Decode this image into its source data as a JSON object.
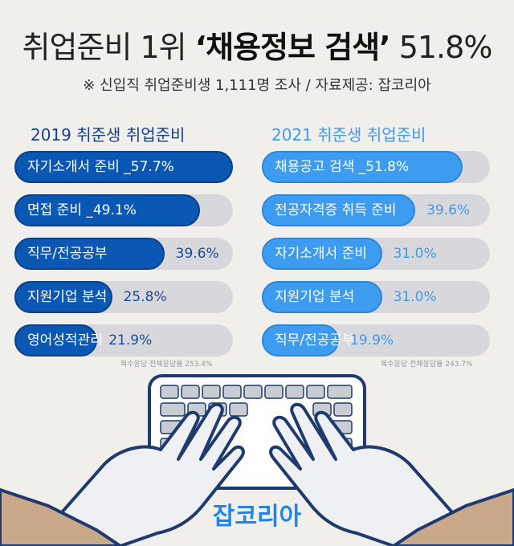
{
  "title_prefix": "취업준비 1위",
  "title_highlight": "‘채용정보 검색’",
  "title_suffix": "51.8%",
  "subtitle": "※ 신입직 취업준비생 1,111명 조사 / 자료제공: 잡코리아",
  "colors": {
    "left_fill": "#0a57b4",
    "left_value": "#1a4d9b",
    "right_fill": "#3d9bf0",
    "right_value": "#3d9bf0",
    "left_title": "#15408c",
    "right_title": "#3d9bf0",
    "track": "#d8d8dc",
    "logo": "#1f86e6"
  },
  "chart_data": [
    {
      "type": "bar",
      "title": "2019 취준생 취업준비",
      "categories": [
        "자기소개서  준비",
        "면접 준비",
        "직무/전공공부",
        "지원기업 분석",
        "영어성적관리"
      ],
      "labels": [
        "자기소개서  준비 _57.7%",
        "면접 준비 _49.1%",
        "직무/전공공부",
        "지원기업 분석",
        "영어성적관리"
      ],
      "values": [
        57.7,
        49.1,
        39.6,
        25.8,
        21.9
      ],
      "value_labels": [
        "",
        "",
        "39.6%",
        "25.8%",
        "21.9%"
      ],
      "note": "복수응답 전체응답률 253.4%"
    },
    {
      "type": "bar",
      "title": "2021 취준생 취업준비",
      "categories": [
        "채용공고 검색",
        "전공자격증 취득 준비",
        "자기소개서 준비",
        "지원기업 분석",
        "직무/전공공부"
      ],
      "labels": [
        "채용공고 검색 _51.8%",
        "전공자격증 취득 준비",
        "자기소개서 준비",
        "지원기업 분석",
        "직무/전공공부"
      ],
      "values": [
        51.8,
        39.6,
        31.0,
        31.0,
        19.9
      ],
      "value_labels": [
        "",
        "39.6%",
        "31.0%",
        "31.0%",
        "19.9%"
      ],
      "note": "복수응답 전체응답률 243.7%"
    }
  ],
  "logo": "잡코리아"
}
